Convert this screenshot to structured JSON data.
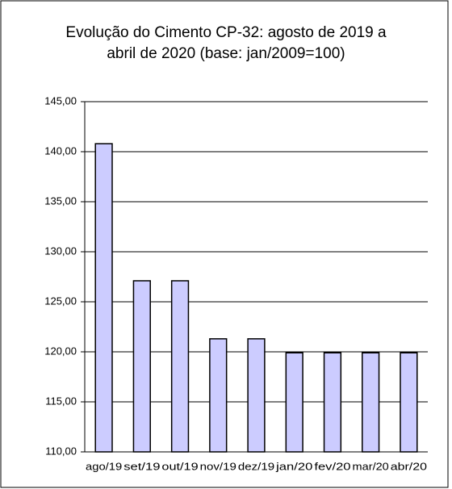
{
  "chart_data": {
    "type": "bar",
    "title": "Evolução do Cimento CP-32: agosto de 2019 a abril de 2020 (base: jan/2009=100)",
    "categories": [
      "ago/19",
      "set/19",
      "out/19",
      "nov/19",
      "dez/19",
      "jan/20",
      "fev/20",
      "mar/20",
      "abr/20"
    ],
    "values": [
      140.8,
      127.1,
      127.1,
      121.3,
      121.3,
      119.9,
      119.9,
      119.9,
      119.9
    ],
    "color": "#ccccff",
    "ylim": [
      110,
      145
    ],
    "yticks": [
      {
        "value": 110,
        "label": "110,00"
      },
      {
        "value": 115,
        "label": "115,00"
      },
      {
        "value": 120,
        "label": "120,00"
      },
      {
        "value": 125,
        "label": "125,00"
      },
      {
        "value": 130,
        "label": "130,00"
      },
      {
        "value": 135,
        "label": "135,00"
      },
      {
        "value": 140,
        "label": "140,00"
      },
      {
        "value": 145,
        "label": "145,00"
      }
    ],
    "grid": true
  }
}
